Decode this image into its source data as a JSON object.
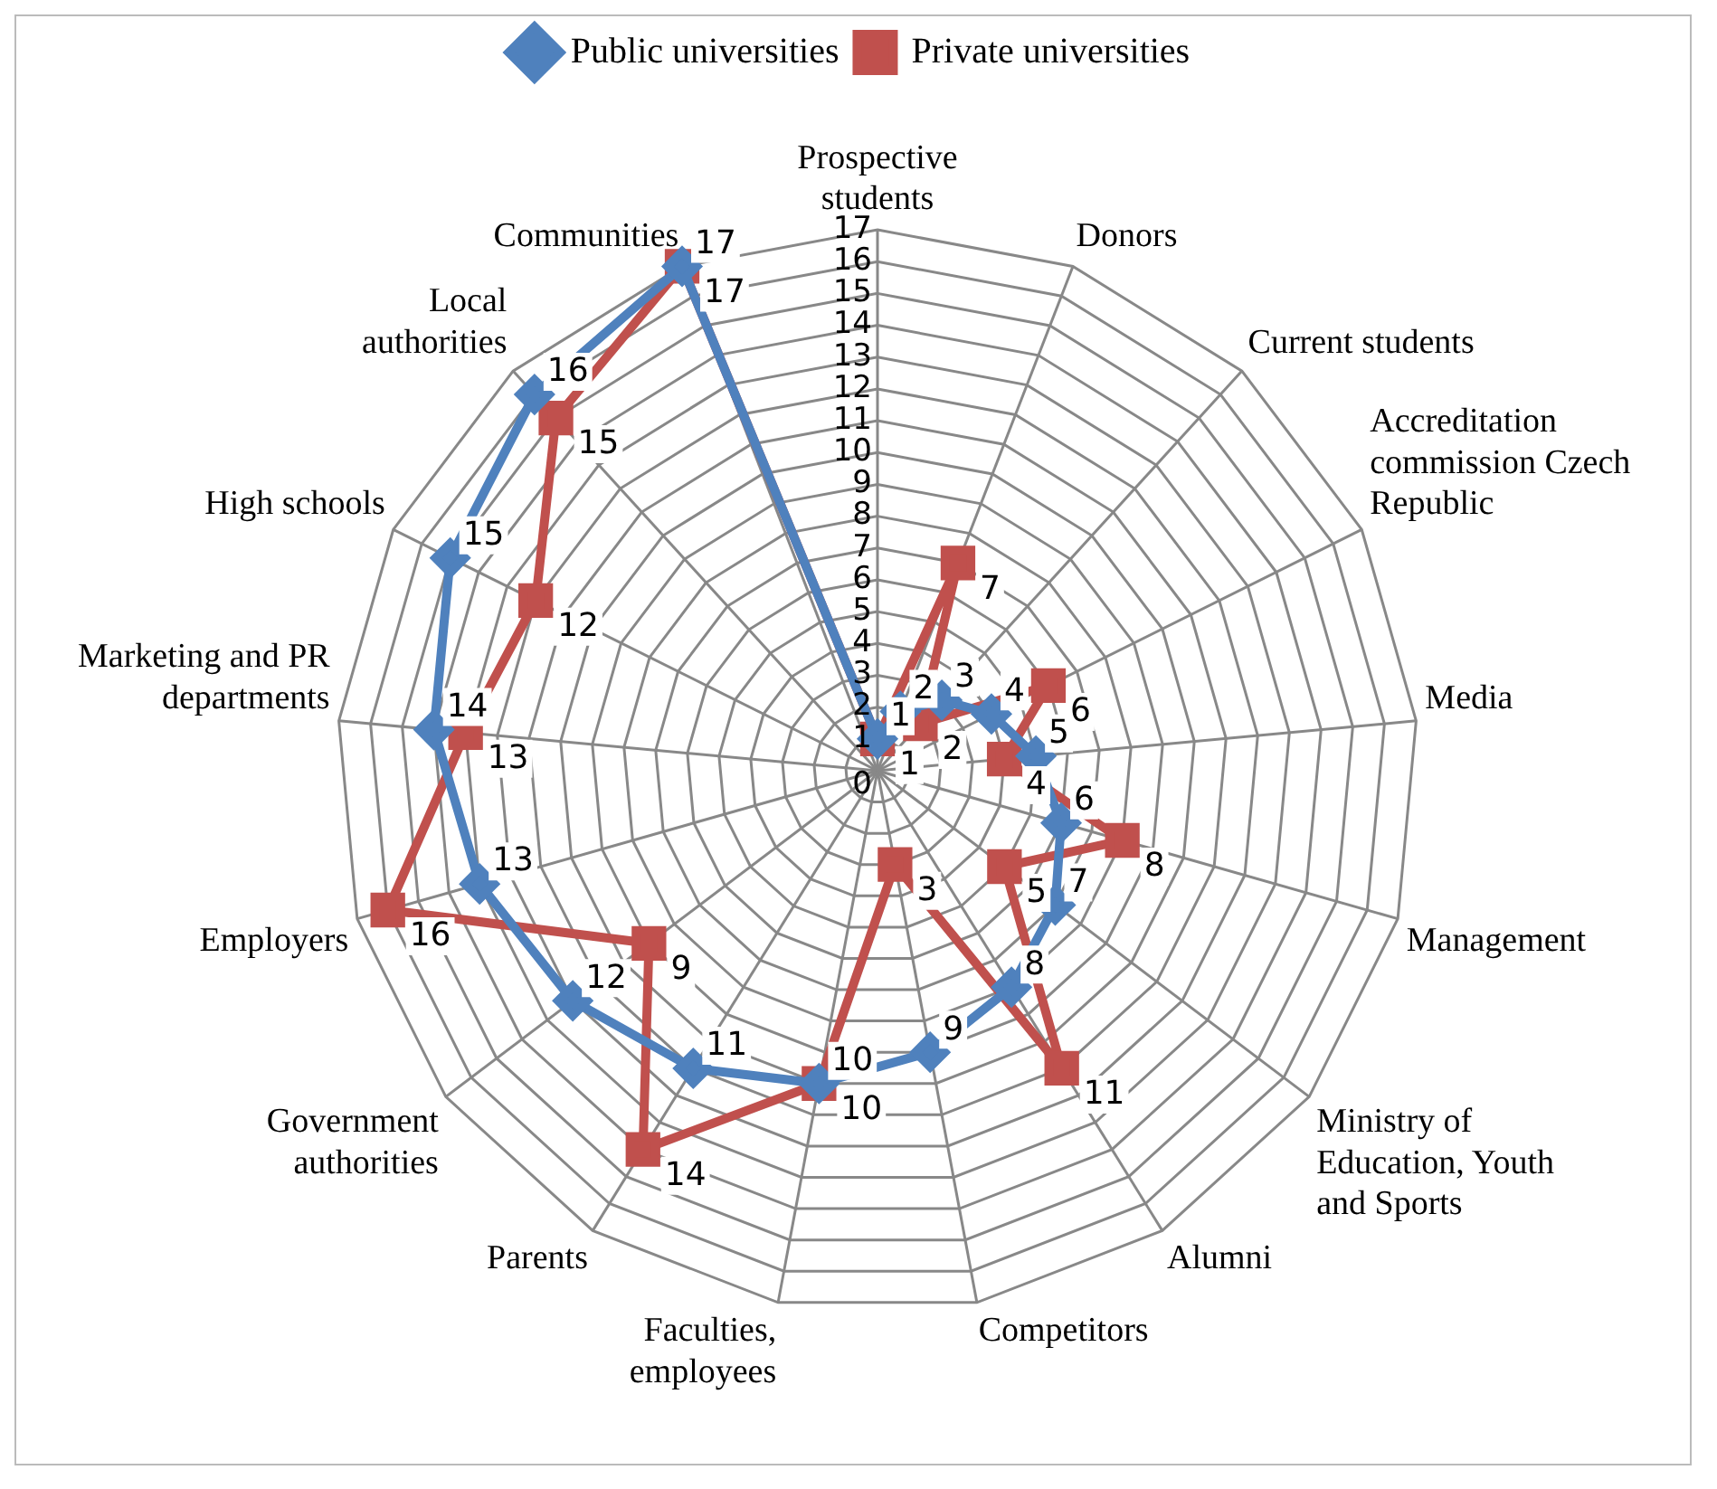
{
  "chart_data": {
    "type": "radar",
    "categories": [
      "Prospective students",
      "Donors",
      "Current students",
      "Accreditation commission Czech Republic",
      "Media",
      "Management",
      "Ministry of Education, Youth and Sports",
      "Alumni",
      "Competitors",
      "Faculties, employees",
      "Parents",
      "Government authorities",
      "Employers",
      "Marketing and PR departments",
      "High schools",
      "Local authorities",
      "Communities"
    ],
    "series": [
      {
        "name": "Public universities",
        "color": "#4f81bd",
        "marker": "diamond",
        "values": [
          1,
          2,
          3,
          4,
          5,
          6,
          7,
          8,
          9,
          10,
          11,
          12,
          13,
          14,
          15,
          16,
          17
        ]
      },
      {
        "name": "Private universities",
        "color": "#c0504d",
        "marker": "square",
        "values": [
          1,
          7,
          2,
          6,
          4,
          8,
          5,
          11,
          3,
          10,
          14,
          9,
          16,
          13,
          12,
          15,
          17
        ]
      }
    ],
    "ylim": [
      0,
      17
    ],
    "yticks": [
      0,
      1,
      2,
      3,
      4,
      5,
      6,
      7,
      8,
      9,
      10,
      11,
      12,
      13,
      14,
      15,
      16,
      17
    ],
    "grid": true,
    "legend": "top",
    "data_labels": true
  }
}
